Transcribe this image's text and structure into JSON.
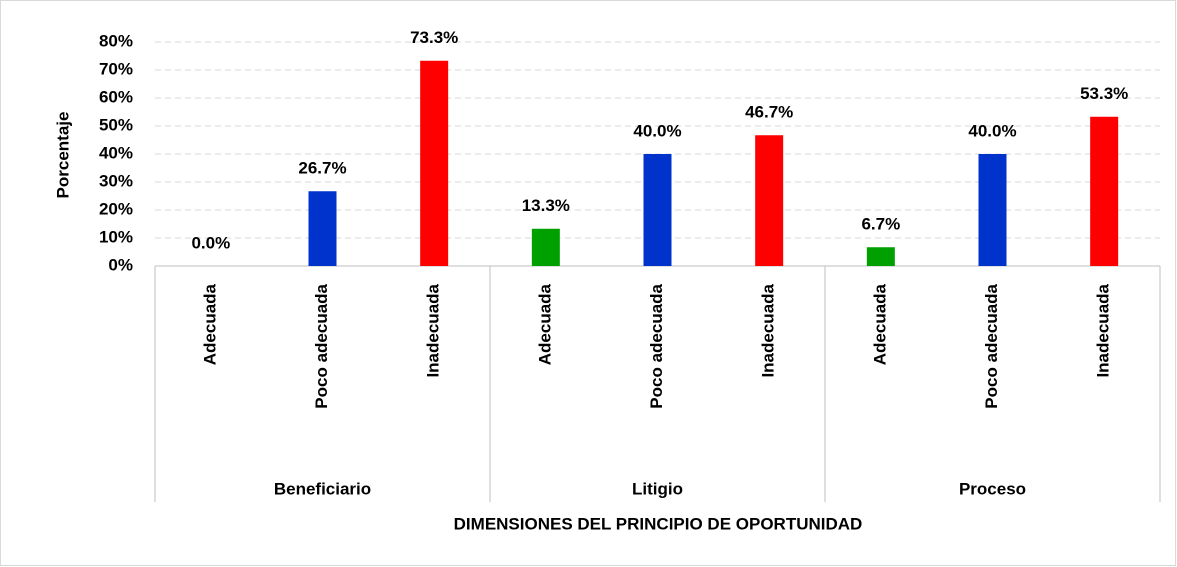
{
  "chart_data": {
    "type": "bar",
    "y_label": "Porcentaje",
    "x_label": "DIMENSIONES DEL PRINCIPIO DE OPORTUNIDAD",
    "colors": [
      "#00a000",
      "#0033cc",
      "#ff0000"
    ],
    "groups": [
      {
        "label": "Beneficiario",
        "categories": [
          "Adecuada",
          "Poco adecuada",
          "Inadecuada"
        ],
        "values": [
          0,
          26.7,
          73.3
        ],
        "value_labels": [
          "0.0%",
          "26.7%",
          "73.3%"
        ]
      },
      {
        "label": "Litigio",
        "categories": [
          "Adecuada",
          "Poco adecuada",
          "Inadecuada"
        ],
        "values": [
          13.3,
          40,
          46.7
        ],
        "value_labels": [
          "13.3%",
          "40.0%",
          "46.7%"
        ]
      },
      {
        "label": "Proceso",
        "categories": [
          "Adecuada",
          "Poco adecuada",
          "Inadecuada"
        ],
        "values": [
          6.7,
          40,
          53.3
        ],
        "value_labels": [
          "6.7%",
          "40.0%",
          "53.3%"
        ]
      }
    ],
    "ylim": [
      0,
      80
    ],
    "yticks": [
      {
        "value": 0,
        "label": "0%"
      },
      {
        "value": 10,
        "label": "10%"
      },
      {
        "value": 20,
        "label": "20%"
      },
      {
        "value": 30,
        "label": "30%"
      },
      {
        "value": 40,
        "label": "40%"
      },
      {
        "value": 50,
        "label": "50%"
      },
      {
        "value": 60,
        "label": "60%"
      },
      {
        "value": 70,
        "label": "70%"
      },
      {
        "value": 80,
        "label": "80%"
      }
    ],
    "grid": true
  }
}
